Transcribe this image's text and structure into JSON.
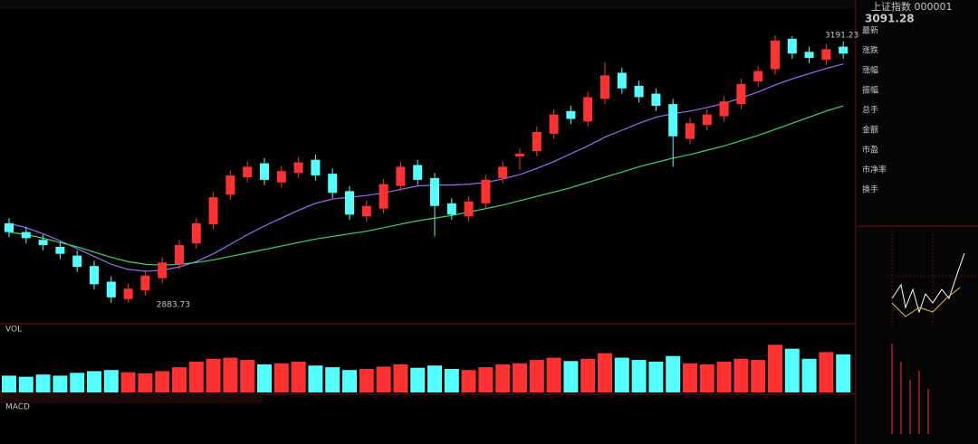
{
  "chart_data": {
    "type": "candlestick",
    "up_color": "#ff3232",
    "down_color": "#54ffff",
    "ylim": [
      2868,
      3216
    ],
    "open": [
      2975,
      2965,
      2956,
      2948,
      2938,
      2926,
      2908,
      2888,
      2898,
      2912,
      2928,
      2952,
      2974,
      3008,
      3028,
      3044,
      3022,
      3033,
      3048,
      3032,
      3012,
      2983,
      2992,
      3018,
      3042,
      3027,
      2998,
      2983,
      2998,
      3027,
      3052,
      3058,
      3078,
      3104,
      3092,
      3118,
      3148,
      3133,
      3124,
      3112,
      3072,
      3088,
      3098,
      3112,
      3138,
      3152,
      3187,
      3172,
      3163,
      3178
    ],
    "high": [
      2981,
      2971,
      2962,
      2954,
      2944,
      2932,
      2914,
      2906,
      2921,
      2936,
      2956,
      2981,
      3011,
      3036,
      3046,
      3050,
      3041,
      3051,
      3054,
      3038,
      3018,
      3001,
      3026,
      3046,
      3048,
      3033,
      3004,
      3006,
      3031,
      3046,
      3061,
      3086,
      3106,
      3110,
      3126,
      3160,
      3154,
      3139,
      3130,
      3118,
      3096,
      3106,
      3121,
      3141,
      3156,
      3191.23,
      3190,
      3178,
      3181,
      3184
    ],
    "low": [
      2959,
      2952,
      2944,
      2934,
      2919,
      2899,
      2883.73,
      2884,
      2892,
      2906,
      2922,
      2946,
      2968,
      3002,
      3022,
      3019,
      3016,
      3027,
      3024,
      3004,
      2979,
      2977,
      2986,
      3012,
      3019,
      2960,
      2979,
      2977,
      2992,
      3021,
      3036,
      3052,
      3072,
      3089,
      3086,
      3112,
      3124,
      3114,
      3104,
      3040,
      3066,
      3082,
      3092,
      3106,
      3132,
      3146,
      3164,
      3159,
      3157,
      3164
    ],
    "close": [
      2965,
      2958,
      2950,
      2940,
      2925,
      2905,
      2890,
      2900,
      2915,
      2930,
      2950,
      2975,
      3005,
      3030,
      3040,
      3025,
      3035,
      3045,
      3030,
      3010,
      2985,
      2995,
      3020,
      3040,
      3025,
      2995,
      2985,
      3000,
      3025,
      3040,
      3055,
      3080,
      3100,
      3095,
      3120,
      3145,
      3130,
      3120,
      3110,
      3075,
      3090,
      3100,
      3115,
      3135,
      3150,
      3185,
      3170,
      3165,
      3175,
      3170
    ],
    "lines": [
      {
        "color": "#9a6ff0",
        "values": [
          2975,
          2970,
          2963,
          2955,
          2946,
          2937,
          2928,
          2922,
          2920,
          2921,
          2925,
          2931,
          2940,
          2951,
          2962,
          2972,
          2981,
          2990,
          2998,
          3003,
          3005,
          3007,
          3010,
          3014,
          3018,
          3019,
          3019,
          3020,
          3022,
          3026,
          3031,
          3038,
          3046,
          3055,
          3064,
          3074,
          3082,
          3090,
          3097,
          3101,
          3104,
          3108,
          3113,
          3119,
          3126,
          3134,
          3141,
          3147,
          3153,
          3158
        ]
      },
      {
        "color": "#3fd36a",
        "values": [
          2965,
          2962,
          2958,
          2953,
          2948,
          2942,
          2936,
          2931,
          2928,
          2927,
          2928,
          2930,
          2933,
          2937,
          2941,
          2945,
          2949,
          2953,
          2957,
          2960,
          2963,
          2966,
          2970,
          2974,
          2978,
          2981,
          2984,
          2988,
          2992,
          2996,
          3001,
          3006,
          3011,
          3016,
          3022,
          3028,
          3034,
          3040,
          3045,
          3050,
          3054,
          3059,
          3064,
          3070,
          3076,
          3083,
          3090,
          3097,
          3104,
          3110
        ]
      }
    ],
    "volume_ylim": [
      0,
      100
    ],
    "volume": [
      30,
      28,
      32,
      30,
      35,
      38,
      40,
      36,
      34,
      38,
      45,
      55,
      60,
      62,
      58,
      50,
      52,
      55,
      48,
      45,
      40,
      42,
      46,
      50,
      44,
      48,
      42,
      40,
      45,
      50,
      52,
      58,
      62,
      56,
      60,
      70,
      62,
      58,
      55,
      65,
      52,
      50,
      55,
      60,
      58,
      85,
      78,
      60,
      72,
      68
    ]
  },
  "sidebar": {
    "title": "上证指数 000001",
    "price": "3091.28",
    "rows": [
      "最新",
      "涨跌",
      "涨幅",
      "振幅",
      "总手",
      "金额",
      "市盈",
      "市净率",
      "换手"
    ]
  },
  "panels": {
    "volume": "VOL",
    "macd": "MACD"
  }
}
